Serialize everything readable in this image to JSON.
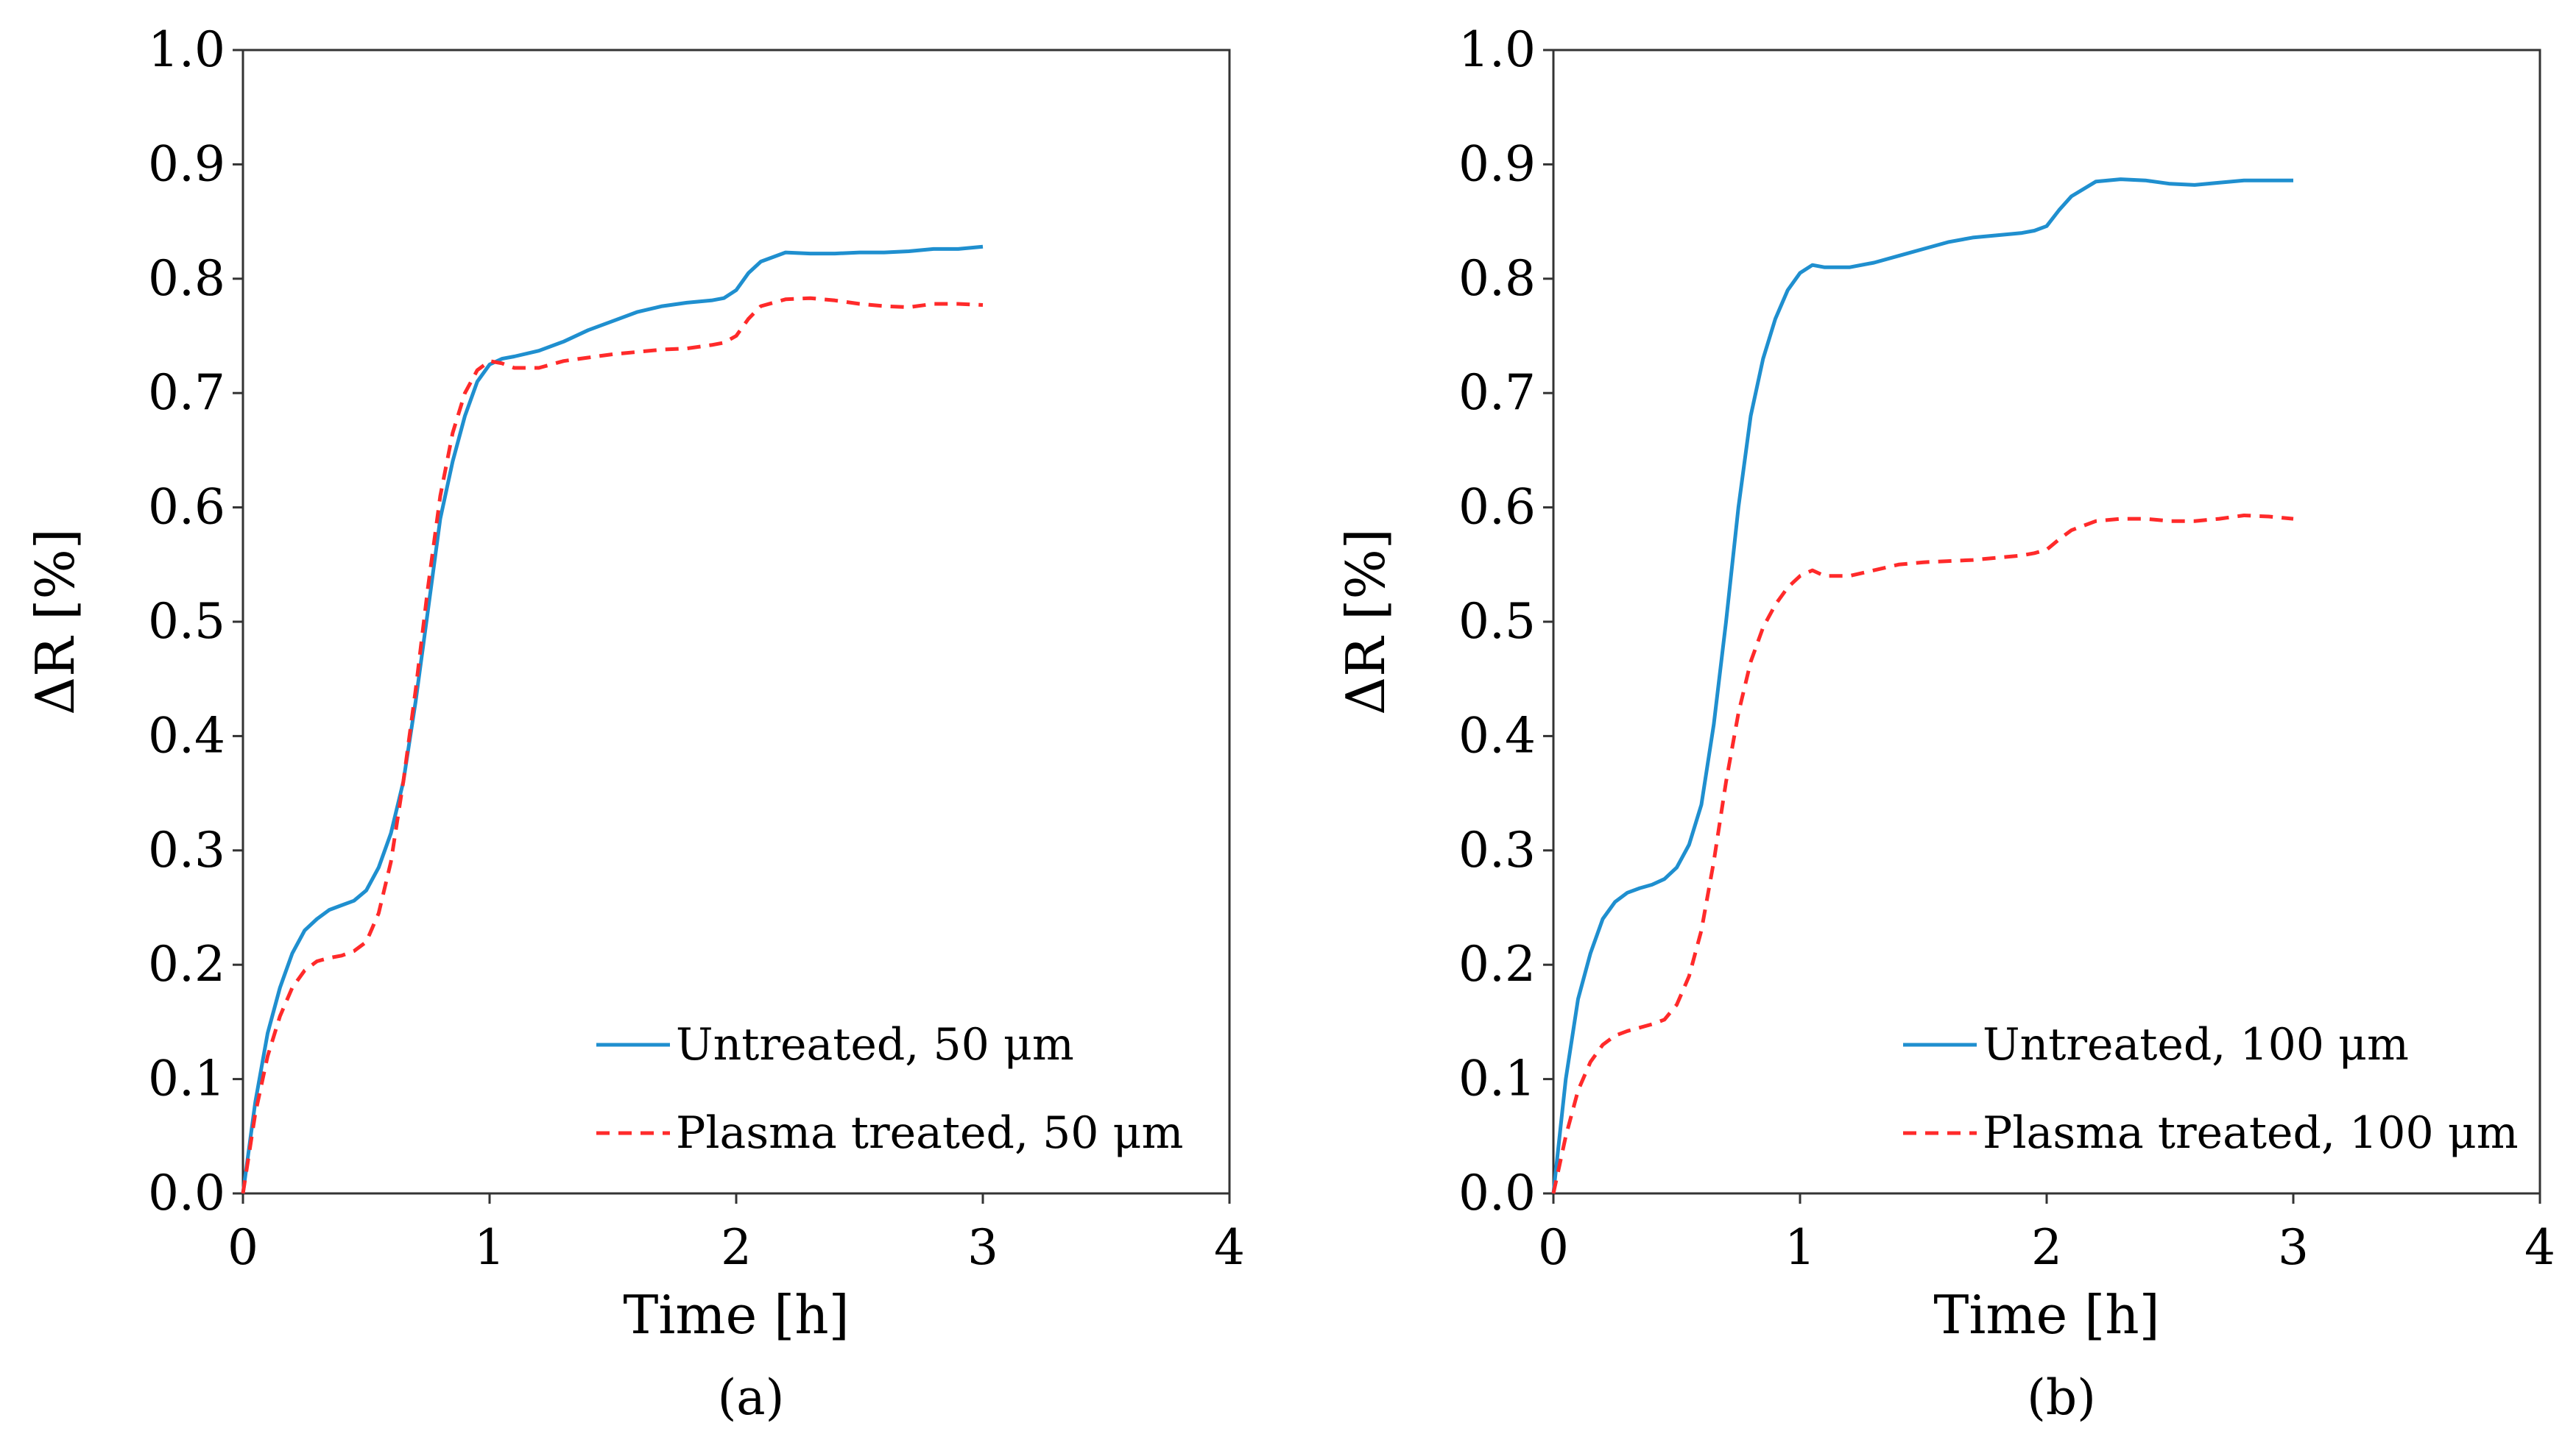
{
  "chart_data": [
    {
      "type": "line",
      "panel_label": "(a)",
      "xlabel": "Time [h]",
      "ylabel": "ΔR [%]",
      "xlim": [
        0,
        4
      ],
      "ylim": [
        0.0,
        1.0
      ],
      "xticks": [
        "0",
        "1",
        "2",
        "3",
        "4"
      ],
      "yticks": [
        "0.0",
        "0.1",
        "0.2",
        "0.3",
        "0.4",
        "0.5",
        "0.6",
        "0.7",
        "0.8",
        "0.9",
        "1.0"
      ],
      "legend_position": "bottom-right",
      "series": [
        {
          "name": "Untreated, 50 μm",
          "color": "#1f8fcf",
          "dash": "solid",
          "x": [
            0,
            0.05,
            0.1,
            0.15,
            0.2,
            0.25,
            0.3,
            0.35,
            0.4,
            0.45,
            0.5,
            0.55,
            0.6,
            0.65,
            0.7,
            0.75,
            0.8,
            0.85,
            0.9,
            0.95,
            1.0,
            1.05,
            1.1,
            1.2,
            1.3,
            1.4,
            1.5,
            1.6,
            1.7,
            1.8,
            1.9,
            1.95,
            2.0,
            2.05,
            2.1,
            2.2,
            2.3,
            2.4,
            2.5,
            2.6,
            2.7,
            2.8,
            2.9,
            3.0
          ],
          "y": [
            0.0,
            0.08,
            0.14,
            0.18,
            0.21,
            0.23,
            0.24,
            0.248,
            0.252,
            0.256,
            0.265,
            0.285,
            0.315,
            0.36,
            0.43,
            0.51,
            0.59,
            0.64,
            0.68,
            0.71,
            0.725,
            0.73,
            0.732,
            0.737,
            0.745,
            0.755,
            0.763,
            0.771,
            0.776,
            0.779,
            0.781,
            0.783,
            0.79,
            0.805,
            0.815,
            0.823,
            0.822,
            0.822,
            0.823,
            0.823,
            0.824,
            0.826,
            0.826,
            0.828
          ]
        },
        {
          "name": "Plasma treated, 50 μm",
          "color": "#ff2a2a",
          "dash": "dashed",
          "x": [
            0,
            0.05,
            0.1,
            0.15,
            0.2,
            0.25,
            0.3,
            0.35,
            0.4,
            0.45,
            0.5,
            0.55,
            0.6,
            0.65,
            0.7,
            0.75,
            0.8,
            0.85,
            0.9,
            0.95,
            1.0,
            1.05,
            1.1,
            1.2,
            1.3,
            1.4,
            1.5,
            1.6,
            1.7,
            1.8,
            1.9,
            1.95,
            2.0,
            2.05,
            2.1,
            2.2,
            2.3,
            2.4,
            2.5,
            2.6,
            2.7,
            2.8,
            2.9,
            3.0
          ],
          "y": [
            0.0,
            0.07,
            0.12,
            0.155,
            0.18,
            0.195,
            0.203,
            0.206,
            0.208,
            0.212,
            0.22,
            0.245,
            0.29,
            0.36,
            0.44,
            0.53,
            0.61,
            0.665,
            0.7,
            0.72,
            0.728,
            0.726,
            0.722,
            0.722,
            0.728,
            0.731,
            0.734,
            0.736,
            0.738,
            0.739,
            0.742,
            0.744,
            0.75,
            0.765,
            0.776,
            0.782,
            0.783,
            0.781,
            0.778,
            0.776,
            0.775,
            0.778,
            0.778,
            0.777
          ]
        }
      ]
    },
    {
      "type": "line",
      "panel_label": "(b)",
      "xlabel": "Time [h]",
      "ylabel": "ΔR [%]",
      "xlim": [
        0,
        4
      ],
      "ylim": [
        0.0,
        1.0
      ],
      "xticks": [
        "0",
        "1",
        "2",
        "3",
        "4"
      ],
      "yticks": [
        "0.0",
        "0.1",
        "0.2",
        "0.3",
        "0.4",
        "0.5",
        "0.6",
        "0.7",
        "0.8",
        "0.9",
        "1.0"
      ],
      "legend_position": "bottom-right",
      "series": [
        {
          "name": "Untreated, 100 μm",
          "color": "#1f8fcf",
          "dash": "solid",
          "x": [
            0,
            0.05,
            0.1,
            0.15,
            0.2,
            0.25,
            0.3,
            0.35,
            0.4,
            0.45,
            0.5,
            0.55,
            0.6,
            0.65,
            0.7,
            0.75,
            0.8,
            0.85,
            0.9,
            0.95,
            1.0,
            1.05,
            1.1,
            1.2,
            1.3,
            1.4,
            1.5,
            1.6,
            1.7,
            1.8,
            1.9,
            1.95,
            2.0,
            2.05,
            2.1,
            2.2,
            2.3,
            2.4,
            2.5,
            2.6,
            2.7,
            2.8,
            2.9,
            3.0
          ],
          "y": [
            0.0,
            0.1,
            0.17,
            0.21,
            0.24,
            0.255,
            0.263,
            0.267,
            0.27,
            0.275,
            0.285,
            0.305,
            0.34,
            0.41,
            0.5,
            0.6,
            0.68,
            0.73,
            0.765,
            0.79,
            0.805,
            0.812,
            0.81,
            0.81,
            0.814,
            0.82,
            0.826,
            0.832,
            0.836,
            0.838,
            0.84,
            0.842,
            0.846,
            0.86,
            0.872,
            0.885,
            0.887,
            0.886,
            0.883,
            0.882,
            0.884,
            0.886,
            0.886,
            0.886
          ]
        },
        {
          "name": "Plasma treated, 100 μm",
          "color": "#ff2a2a",
          "dash": "dashed",
          "x": [
            0,
            0.05,
            0.1,
            0.15,
            0.2,
            0.25,
            0.3,
            0.35,
            0.4,
            0.45,
            0.5,
            0.55,
            0.6,
            0.65,
            0.7,
            0.75,
            0.8,
            0.85,
            0.9,
            0.95,
            1.0,
            1.05,
            1.1,
            1.2,
            1.3,
            1.4,
            1.5,
            1.6,
            1.7,
            1.8,
            1.9,
            1.95,
            2.0,
            2.05,
            2.1,
            2.2,
            2.3,
            2.4,
            2.5,
            2.6,
            2.7,
            2.8,
            2.9,
            3.0
          ],
          "y": [
            0.0,
            0.05,
            0.09,
            0.115,
            0.13,
            0.138,
            0.142,
            0.145,
            0.148,
            0.152,
            0.165,
            0.19,
            0.23,
            0.29,
            0.36,
            0.42,
            0.465,
            0.495,
            0.515,
            0.53,
            0.54,
            0.545,
            0.54,
            0.54,
            0.545,
            0.55,
            0.552,
            0.553,
            0.554,
            0.556,
            0.558,
            0.56,
            0.563,
            0.572,
            0.58,
            0.588,
            0.59,
            0.59,
            0.588,
            0.588,
            0.59,
            0.593,
            0.592,
            0.59
          ]
        }
      ]
    }
  ]
}
